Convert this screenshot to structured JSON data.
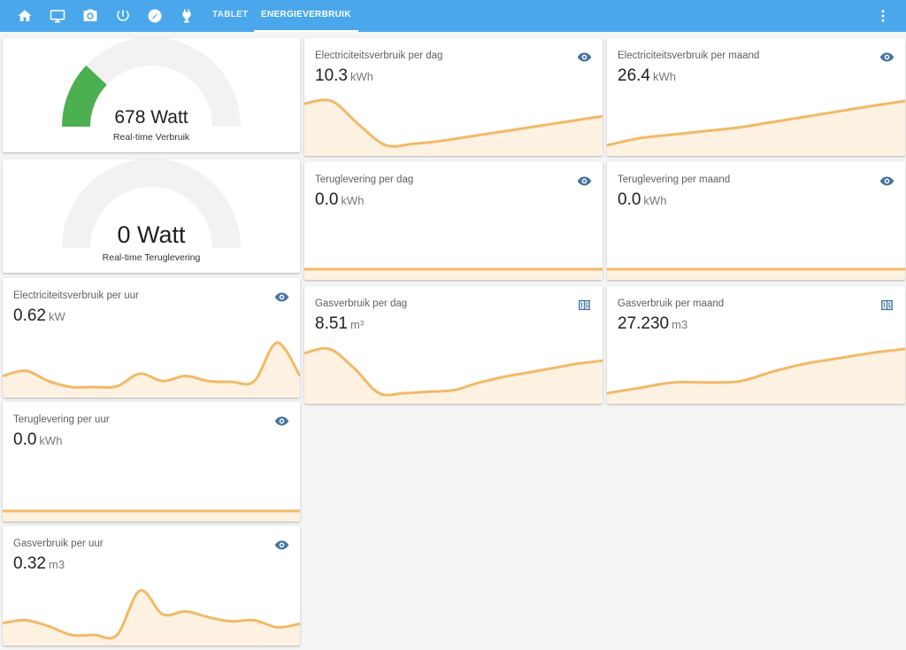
{
  "nav": {
    "icons": [
      "home-icon",
      "monitor-icon",
      "camera-icon",
      "power-icon",
      "compass-icon",
      "plug-icon"
    ],
    "tabs": [
      {
        "label": "TABLET",
        "active": false
      },
      {
        "label": "ENERGIEVERBRUIK",
        "active": true
      }
    ],
    "menu_icon": "dots-vertical-icon",
    "accent": "#4aa7ec"
  },
  "gauges": [
    {
      "value": 678,
      "unit": "Watt",
      "label": "Real-time Verbruik",
      "fill_fraction": 0.24,
      "color": "#4caf50"
    },
    {
      "value": 0,
      "unit": "Watt",
      "label": "Real-time Teruglevering",
      "fill_fraction": 0,
      "color": "#4caf50"
    }
  ],
  "cards": [
    {
      "id": "elec-uur",
      "name": "Electriciteitsverbruik per uur",
      "value": "0.62",
      "unit": "kW",
      "icon": "eye-icon",
      "series": [
        0.45,
        0.52,
        0.38,
        0.3,
        0.3,
        0.31,
        0.48,
        0.38,
        0.45,
        0.38,
        0.37,
        0.38,
        0.9,
        0.45
      ]
    },
    {
      "id": "terug-uur",
      "name": "Teruglevering per uur",
      "value": "0.0",
      "unit": "kWh",
      "icon": "eye-icon",
      "series": [
        0,
        0
      ]
    },
    {
      "id": "gas-uur",
      "name": "Gasverbruik per uur",
      "value": "0.32",
      "unit": "m3",
      "icon": "eye-icon",
      "series": [
        0.35,
        0.4,
        0.3,
        0.15,
        0.15,
        0.15,
        0.9,
        0.5,
        0.55,
        0.45,
        0.38,
        0.4,
        0.28,
        0.34
      ]
    },
    {
      "id": "elec-dag",
      "name": "Electriciteitsverbruik per dag",
      "value": "10.3",
      "unit": "kWh",
      "icon": "eye-icon",
      "series": [
        8.0,
        8.2,
        6.5,
        5.0,
        5.1,
        5.3,
        5.6,
        5.9,
        6.2,
        6.5,
        6.8,
        7.1
      ]
    },
    {
      "id": "elec-maand",
      "name": "Electriciteitsverbruik per maand",
      "value": "26.4",
      "unit": "kWh",
      "icon": "eye-icon",
      "series": [
        14,
        16,
        17,
        18,
        19,
        20.5,
        22,
        23.5,
        25,
        26.4
      ]
    },
    {
      "id": "terug-dag",
      "name": "Teruglevering per dag",
      "value": "0.0",
      "unit": "kWh",
      "icon": "eye-icon",
      "series": [
        0,
        0
      ]
    },
    {
      "id": "terug-maand",
      "name": "Teruglevering per maand",
      "value": "0.0",
      "unit": "kWh",
      "icon": "eye-icon",
      "series": [
        0,
        0
      ]
    },
    {
      "id": "gas-dag",
      "name": "Gasverbruik per dag",
      "value": "8.51",
      "unit": "m³",
      "icon": "counter-icon",
      "series": [
        6.5,
        6.8,
        5.5,
        3.8,
        3.8,
        3.9,
        4.0,
        4.5,
        4.9,
        5.2,
        5.5,
        5.8,
        6.0
      ]
    },
    {
      "id": "gas-maand",
      "name": "Gasverbruik per maand",
      "value": "27.230",
      "unit": "m3",
      "icon": "counter-icon",
      "series": [
        19,
        20,
        21,
        21,
        21.2,
        23,
        24.5,
        25.5,
        26.5,
        27.23
      ]
    }
  ],
  "colors": {
    "line": "#f2b968",
    "fill": "#fdf1e1",
    "gauge_bg": "#f2f2f2",
    "icon": "#44739e"
  }
}
